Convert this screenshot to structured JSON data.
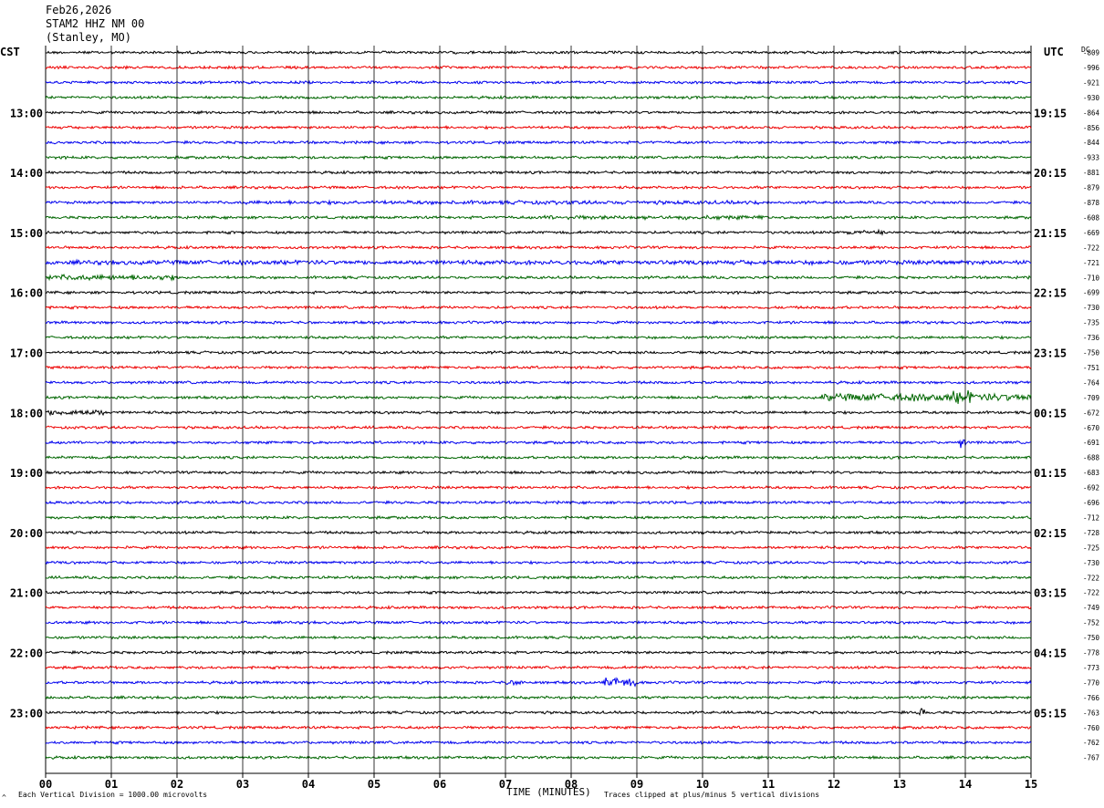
{
  "header": {
    "date": "Feb26,2026",
    "station": "STAM2 HHZ NM 00",
    "location": "(Stanley, MO)"
  },
  "left_tz": "CST",
  "right_tz": "UTC",
  "right_col_header": "DC",
  "footer": {
    "scale_note": "Each Vertical Division = 1000.00 microvolts",
    "axis_title": "TIME (MINUTES)",
    "clip_note": "Traces clipped at plus/minus 5 vertical divisions",
    "corner_mark": "^"
  },
  "chart_data": {
    "type": "line",
    "title": "",
    "xlabel": "TIME (MINUTES)",
    "ylabel": "",
    "xlim": [
      0,
      15
    ],
    "x_ticks": [
      "00",
      "01",
      "02",
      "03",
      "04",
      "05",
      "06",
      "07",
      "08",
      "09",
      "10",
      "11",
      "12",
      "13",
      "14",
      "15"
    ],
    "grid": "vertical lines at each minute",
    "trace_colors": [
      "#000000",
      "#ee0000",
      "#0000ee",
      "#006600"
    ],
    "left_time_labels": [
      {
        "row": 4,
        "label": "13:00"
      },
      {
        "row": 8,
        "label": "14:00"
      },
      {
        "row": 12,
        "label": "15:00"
      },
      {
        "row": 16,
        "label": "16:00"
      },
      {
        "row": 20,
        "label": "17:00"
      },
      {
        "row": 24,
        "label": "18:00"
      },
      {
        "row": 28,
        "label": "19:00"
      },
      {
        "row": 32,
        "label": "20:00"
      },
      {
        "row": 36,
        "label": "21:00"
      },
      {
        "row": 40,
        "label": "22:00"
      },
      {
        "row": 44,
        "label": "23:00"
      }
    ],
    "right_time_labels": [
      {
        "row": 4,
        "label": "19:15"
      },
      {
        "row": 8,
        "label": "20:15"
      },
      {
        "row": 12,
        "label": "21:15"
      },
      {
        "row": 16,
        "label": "22:15"
      },
      {
        "row": 20,
        "label": "23:15"
      },
      {
        "row": 24,
        "label": "00:15"
      },
      {
        "row": 28,
        "label": "01:15"
      },
      {
        "row": 32,
        "label": "02:15"
      },
      {
        "row": 36,
        "label": "03:15"
      },
      {
        "row": 40,
        "label": "04:15"
      },
      {
        "row": 44,
        "label": "05:15"
      }
    ],
    "dc_offsets": [
      -809,
      -996,
      -921,
      -930,
      -864,
      -856,
      -844,
      -933,
      -881,
      -879,
      -878,
      -608,
      -669,
      -722,
      -721,
      -710,
      -699,
      -730,
      -735,
      -736,
      -750,
      -751,
      -764,
      -709,
      -672,
      -670,
      -691,
      -688,
      -683,
      -692,
      -696,
      -712,
      -728,
      -725,
      -730,
      -722,
      -722,
      -749,
      -752,
      -750,
      -778,
      -773,
      -770,
      -766,
      -763,
      -760,
      -762,
      -767
    ],
    "events": [
      {
        "row": 14,
        "from": 0,
        "to": 15,
        "amp": 1.6
      },
      {
        "row": 15,
        "from": 0,
        "to": 2.0,
        "amp": 2.0
      },
      {
        "row": 10,
        "from": 3,
        "to": 11,
        "amp": 1.4
      },
      {
        "row": 11,
        "from": 7.5,
        "to": 11,
        "amp": 1.5
      },
      {
        "row": 12,
        "from": 12.2,
        "to": 12.8,
        "amp": 1.8
      },
      {
        "row": 23,
        "from": 11.8,
        "to": 15,
        "amp": 2.8
      },
      {
        "row": 24,
        "from": 0,
        "to": 0.9,
        "amp": 2.2
      },
      {
        "row": 26,
        "from": 13.9,
        "to": 14.0,
        "amp": 4.0
      },
      {
        "row": 42,
        "from": 7.0,
        "to": 7.3,
        "amp": 2.0
      },
      {
        "row": 42,
        "from": 8.5,
        "to": 9.0,
        "amp": 3.5
      },
      {
        "row": 44,
        "from": 13.3,
        "to": 13.4,
        "amp": 4.0
      },
      {
        "row": 23,
        "from": 13.8,
        "to": 14.1,
        "amp": 5.0
      }
    ]
  }
}
